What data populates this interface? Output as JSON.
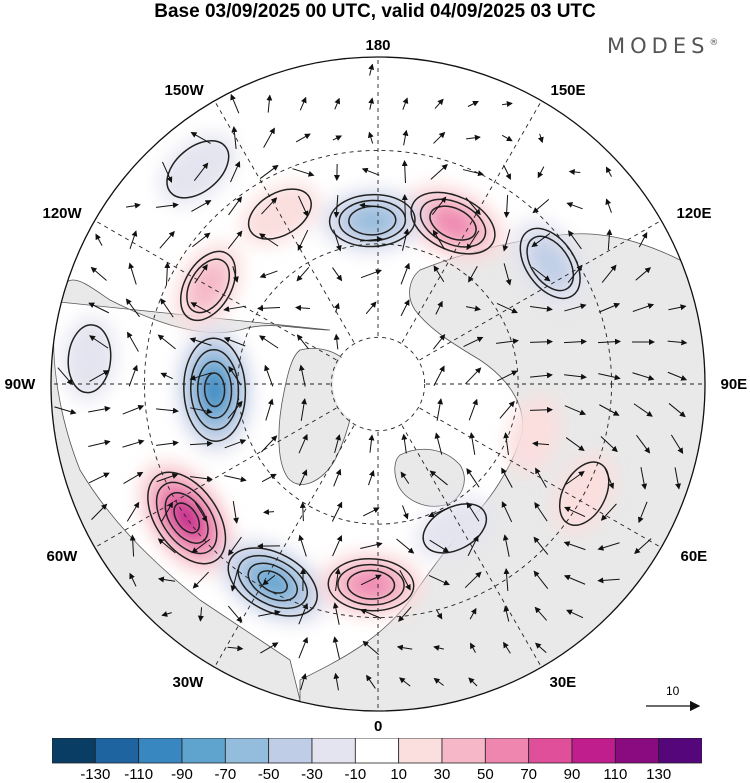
{
  "title": "Base 03/09/2025 00 UTC, valid 04/09/2025 03 UTC",
  "brand": {
    "name": "MODES",
    "mark": "®"
  },
  "map": {
    "projection": "north-polar-stereographic",
    "longitude_labels": [
      "180",
      "150E",
      "120E",
      "90E",
      "60E",
      "30E",
      "0",
      "30W",
      "60W",
      "90W",
      "120W",
      "150W"
    ],
    "anomalies": [
      {
        "lon": -88,
        "lat": 55,
        "value": -120
      },
      {
        "lon": -55,
        "lat": 40,
        "value": 120
      },
      {
        "lon": -28,
        "lat": 42,
        "value": -100
      },
      {
        "lon": -2,
        "lat": 47,
        "value": 70
      },
      {
        "lon": 28,
        "lat": 55,
        "value": -20
      },
      {
        "lon": 62,
        "lat": 40,
        "value": 20
      },
      {
        "lon": 72,
        "lat": 55,
        "value": 10
      },
      {
        "lon": 125,
        "lat": 45,
        "value": -50
      },
      {
        "lon": 155,
        "lat": 52,
        "value": 80
      },
      {
        "lon": -178,
        "lat": 55,
        "value": -70
      },
      {
        "lon": -150,
        "lat": 48,
        "value": 20
      },
      {
        "lon": -120,
        "lat": 48,
        "value": 40
      },
      {
        "lon": -140,
        "lat": 30,
        "value": -30
      },
      {
        "lon": -95,
        "lat": 28,
        "value": -20
      }
    ]
  },
  "colorbar": {
    "tick_labels": [
      "-130",
      "-110",
      "-90",
      "-70",
      "-50",
      "-30",
      "-10",
      "10",
      "30",
      "50",
      "70",
      "90",
      "110",
      "130"
    ],
    "colors": [
      "#0a3d64",
      "#1e64a0",
      "#3987c0",
      "#5fa3cf",
      "#94bddd",
      "#bfcee6",
      "#e4e4f0",
      "#ffffff",
      "#fbdede",
      "#f6b7c8",
      "#ef86b0",
      "#e0509a",
      "#bf1e8c",
      "#8a0a80",
      "#54067a"
    ]
  },
  "reference_vector": {
    "label": "10"
  }
}
